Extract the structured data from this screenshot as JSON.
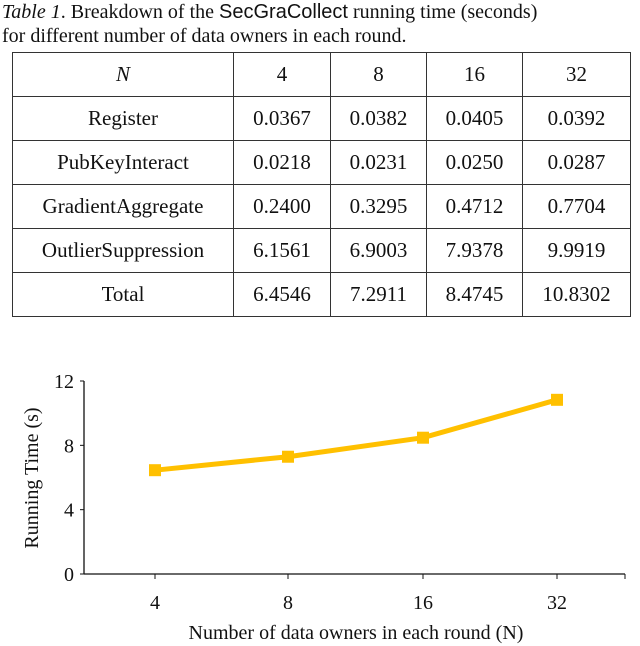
{
  "caption": {
    "label": "Table 1",
    "pre": ". Breakdown of the ",
    "system": "SecGraCollect",
    "post": " running time (seconds)",
    "line2": "for different number of data owners in each round."
  },
  "table": {
    "header": [
      "N",
      "4",
      "8",
      "16",
      "32"
    ],
    "rows": [
      [
        "Register",
        "0.0367",
        "0.0382",
        "0.0405",
        "0.0392"
      ],
      [
        "PubKeyInteract",
        "0.0218",
        "0.0231",
        "0.0250",
        "0.0287"
      ],
      [
        "GradientAggregate",
        "0.2400",
        "0.3295",
        "0.4712",
        "0.7704"
      ],
      [
        "OutlierSuppression",
        "6.1561",
        "6.9003",
        "7.9378",
        "9.9919"
      ],
      [
        "Total",
        "6.4546",
        "7.2911",
        "8.4745",
        "10.8302"
      ]
    ]
  },
  "chart_data": {
    "type": "line",
    "categories": [
      "4",
      "8",
      "16",
      "32"
    ],
    "series": [
      {
        "name": "Total",
        "values": [
          6.4546,
          7.2911,
          8.4745,
          10.8302
        ],
        "color": "#FFC000"
      }
    ],
    "xlabel": "Number of data owners in each round (N)",
    "ylabel": "Running Time (s)",
    "ylim": [
      0,
      12
    ],
    "yticks": [
      "0",
      "4",
      "8",
      "12"
    ],
    "grid": false
  }
}
